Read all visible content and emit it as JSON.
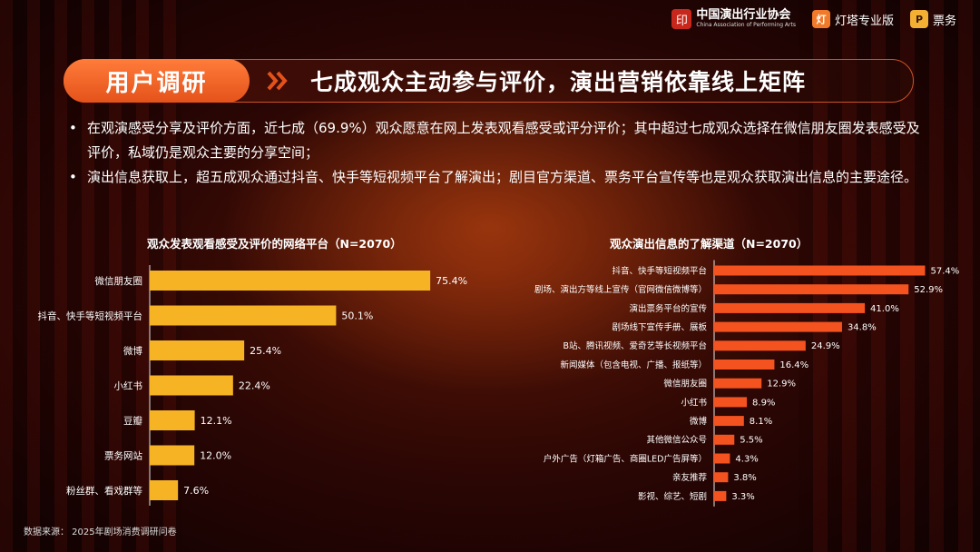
{
  "logos": {
    "association_cn": "中国演出行业协会",
    "association_en": "China Association of Performing Arts",
    "dengta": "灯塔专业版",
    "dengta_badge": "灯",
    "ticket_badge": "P",
    "ticket": "票务"
  },
  "header": {
    "tag": "用户调研",
    "title": "七成观众主动参与评价，演出营销依靠线上矩阵"
  },
  "bullets": [
    "在观演感受分享及评价方面，近七成（69.9%）观众愿意在网上发表观看感受或评分评价；其中超过七成观众选择在微信朋友圈发表感受及评价，私域仍是观众主要的分享空间；",
    "演出信息获取上，超五成观众通过抖音、快手等短视频平台了解演出；剧目官方渠道、票务平台宣传等也是观众获取演出信息的主要途径。"
  ],
  "source": "数据来源： 2025年剧场消费调研问卷",
  "colors": {
    "bar_left": "#f6b324",
    "bar_right": "#f4531f",
    "accent": "#e4521a"
  },
  "chart_data": [
    {
      "type": "bar",
      "orientation": "horizontal",
      "title": "观众发表观看感受及评价的网络平台（N=2070）",
      "categories": [
        "微信朋友圈",
        "抖音、快手等短视频平台",
        "微博",
        "小红书",
        "豆瓣",
        "票务网站",
        "粉丝群、看戏群等"
      ],
      "values": [
        75.4,
        50.1,
        25.4,
        22.4,
        12.1,
        12.0,
        7.6
      ],
      "unit": "%",
      "xlim": [
        0,
        100
      ],
      "grid": false
    },
    {
      "type": "bar",
      "orientation": "horizontal",
      "title": "观众演出信息的了解渠道（N=2070）",
      "categories": [
        "抖音、快手等短视频平台",
        "剧场、演出方等线上宣传（官网微信微博等）",
        "演出票务平台的宣传",
        "剧场线下宣传手册、展板",
        "B站、腾讯视频、爱奇艺等长视频平台",
        "新闻媒体（包含电视、广播、报纸等）",
        "微信朋友圈",
        "小红书",
        "微博",
        "其他微信公众号",
        "户外广告（灯箱广告、商圈LED广告屏等）",
        "亲友推荐",
        "影视、综艺、短剧"
      ],
      "values": [
        57.4,
        52.9,
        41.0,
        34.8,
        24.9,
        16.4,
        12.9,
        8.9,
        8.1,
        5.5,
        4.3,
        3.8,
        3.3
      ],
      "unit": "%",
      "xlim": [
        0,
        100
      ],
      "grid": false
    }
  ]
}
